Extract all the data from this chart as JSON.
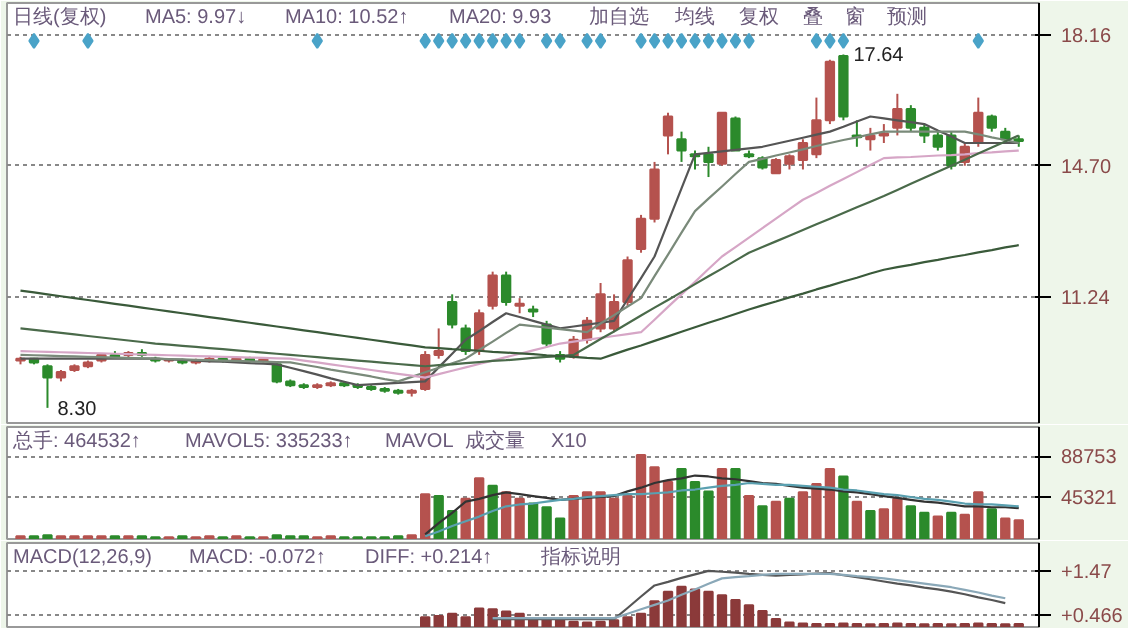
{
  "chart_data": [
    {
      "type": "candlestick",
      "categories": [
        null,
        null,
        null,
        null,
        null,
        null,
        null,
        null,
        null,
        null,
        null,
        null,
        null,
        null,
        null,
        null,
        null,
        null,
        null,
        null,
        null,
        null,
        null,
        null,
        null,
        null,
        null,
        null,
        null,
        null,
        null,
        null,
        null,
        null,
        null,
        null,
        null,
        null,
        null,
        null,
        null,
        null,
        null,
        null,
        null,
        null,
        null,
        null,
        null,
        null,
        null,
        null,
        null,
        null,
        null,
        null,
        null,
        null,
        null,
        null,
        null,
        null,
        null,
        null,
        null,
        null,
        null,
        null,
        null,
        null,
        null,
        null,
        null,
        null,
        null
      ],
      "ohlc": [
        [
          9.55,
          9.65,
          9.45,
          9.6
        ],
        [
          9.6,
          9.62,
          9.45,
          9.5
        ],
        [
          9.4,
          9.45,
          8.3,
          9.1
        ],
        [
          9.1,
          9.3,
          9.0,
          9.25
        ],
        [
          9.3,
          9.45,
          9.25,
          9.4
        ],
        [
          9.4,
          9.55,
          9.35,
          9.5
        ],
        [
          9.55,
          9.75,
          9.5,
          9.7
        ],
        [
          9.7,
          9.8,
          9.6,
          9.65
        ],
        [
          9.7,
          9.8,
          9.6,
          9.75
        ],
        [
          9.75,
          9.85,
          9.65,
          9.7
        ],
        [
          9.6,
          9.65,
          9.5,
          9.55
        ],
        [
          9.55,
          9.6,
          9.5,
          9.58
        ],
        [
          9.55,
          9.6,
          9.45,
          9.5
        ],
        [
          9.5,
          9.6,
          9.45,
          9.55
        ],
        [
          9.55,
          9.65,
          9.5,
          9.6
        ],
        [
          9.6,
          9.65,
          9.5,
          9.55
        ],
        [
          9.55,
          9.65,
          9.5,
          9.6
        ],
        [
          9.6,
          9.65,
          9.5,
          9.55
        ],
        [
          9.55,
          9.62,
          9.5,
          9.58
        ],
        [
          9.45,
          9.5,
          8.95,
          9.0
        ],
        [
          9.0,
          9.05,
          8.85,
          8.9
        ],
        [
          8.9,
          8.95,
          8.8,
          8.85
        ],
        [
          8.85,
          8.95,
          8.8,
          8.9
        ],
        [
          8.9,
          9.0,
          8.85,
          8.95
        ],
        [
          8.95,
          9.0,
          8.85,
          8.9
        ],
        [
          8.9,
          8.95,
          8.8,
          8.85
        ],
        [
          8.85,
          8.9,
          8.75,
          8.8
        ],
        [
          8.8,
          8.85,
          8.7,
          8.75
        ],
        [
          8.75,
          8.8,
          8.65,
          8.7
        ],
        [
          8.7,
          8.8,
          8.6,
          8.75
        ],
        [
          8.8,
          9.8,
          8.75,
          9.7
        ],
        [
          9.7,
          10.4,
          9.6,
          9.8
        ],
        [
          11.1,
          11.3,
          10.4,
          10.5
        ],
        [
          10.4,
          10.5,
          9.7,
          9.8
        ],
        [
          9.8,
          10.9,
          9.7,
          10.8
        ],
        [
          11.0,
          11.9,
          10.9,
          11.8
        ],
        [
          11.8,
          11.9,
          11.0,
          11.1
        ],
        [
          11.0,
          11.2,
          10.8,
          11.05
        ],
        [
          10.9,
          11.0,
          10.7,
          10.85
        ],
        [
          10.5,
          10.6,
          9.9,
          10.0
        ],
        [
          9.7,
          9.8,
          9.5,
          9.6
        ],
        [
          9.65,
          10.2,
          9.6,
          10.1
        ],
        [
          10.1,
          10.7,
          10.0,
          10.6
        ],
        [
          10.4,
          11.6,
          10.3,
          11.3
        ],
        [
          10.4,
          11.3,
          10.3,
          11.1
        ],
        [
          11.1,
          12.3,
          11.0,
          12.2
        ],
        [
          12.5,
          13.4,
          12.4,
          13.3
        ],
        [
          13.3,
          14.8,
          13.2,
          14.6
        ],
        [
          15.5,
          16.1,
          15.0,
          16.0
        ],
        [
          15.4,
          15.6,
          14.8,
          15.1
        ],
        [
          15.0,
          15.1,
          14.6,
          14.95
        ],
        [
          15.0,
          15.2,
          14.4,
          14.8
        ],
        [
          14.75,
          16.1,
          14.7,
          16.1
        ],
        [
          15.95,
          16.0,
          15.1,
          15.1
        ],
        [
          15.0,
          15.1,
          14.9,
          14.95
        ],
        [
          14.9,
          14.95,
          14.6,
          14.65
        ],
        [
          14.5,
          14.9,
          14.5,
          14.85
        ],
        [
          14.75,
          15.0,
          14.6,
          14.95
        ],
        [
          14.85,
          15.4,
          14.6,
          15.3
        ],
        [
          15.0,
          16.5,
          14.9,
          15.9
        ],
        [
          15.9,
          17.5,
          15.8,
          17.45
        ],
        [
          17.6,
          17.64,
          15.9,
          16.0
        ],
        [
          15.5,
          15.9,
          15.2,
          15.45
        ],
        [
          15.4,
          15.7,
          15.1,
          15.5
        ],
        [
          15.5,
          15.8,
          15.3,
          15.55
        ],
        [
          15.7,
          16.6,
          15.5,
          16.2
        ],
        [
          16.2,
          16.3,
          15.6,
          15.7
        ],
        [
          15.7,
          15.8,
          15.3,
          15.5
        ],
        [
          15.5,
          15.6,
          15.1,
          15.2
        ],
        [
          15.5,
          15.6,
          14.6,
          14.7
        ],
        [
          14.8,
          15.3,
          14.7,
          15.2
        ],
        [
          15.3,
          16.5,
          15.2,
          16.1
        ],
        [
          16.0,
          16.05,
          15.6,
          15.7
        ],
        [
          15.6,
          15.7,
          15.3,
          15.4
        ],
        [
          15.4,
          15.5,
          15.2,
          15.35
        ]
      ],
      "colors": [
        "#b5524e",
        "#2b8a2b",
        "#2b8a2b",
        "#b5524e",
        "#b5524e",
        "#b5524e",
        "#b5524e",
        "#2b8a2b",
        "#b5524e",
        "#2b8a2b",
        "#2b8a2b",
        "#b5524e",
        "#2b8a2b",
        "#b5524e",
        "#b5524e",
        "#2b8a2b",
        "#b5524e",
        "#2b8a2b",
        "#b5524e",
        "#2b8a2b",
        "#2b8a2b",
        "#2b8a2b",
        "#b5524e",
        "#b5524e",
        "#2b8a2b",
        "#2b8a2b",
        "#2b8a2b",
        "#2b8a2b",
        "#2b8a2b",
        "#b5524e",
        "#b5524e",
        "#b5524e",
        "#2b8a2b",
        "#2b8a2b",
        "#b5524e",
        "#b5524e",
        "#2b8a2b",
        "#b5524e",
        "#2b8a2b",
        "#2b8a2b",
        "#2b8a2b",
        "#b5524e",
        "#b5524e",
        "#b5524e",
        "#b5524e",
        "#b5524e",
        "#b5524e",
        "#b5524e",
        "#b5524e",
        "#2b8a2b",
        "#2b8a2b",
        "#2b8a2b",
        "#b5524e",
        "#2b8a2b",
        "#2b8a2b",
        "#2b8a2b",
        "#b5524e",
        "#b5524e",
        "#b5524e",
        "#b5524e",
        "#b5524e",
        "#2b8a2b",
        "#2b8a2b",
        "#b5524e",
        "#b5524e",
        "#b5524e",
        "#2b8a2b",
        "#2b8a2b",
        "#2b8a2b",
        "#2b8a2b",
        "#b5524e",
        "#b5524e",
        "#2b8a2b",
        "#2b8a2b",
        "#2b8a2b"
      ],
      "series": [
        {
          "type": "line",
          "color": "#555555",
          "values": [
            9.6,
            9.6,
            9.6,
            9.6,
            9.6,
            9.6,
            9.6,
            9.6,
            9.6,
            9.6,
            9.6,
            9.58,
            9.57,
            9.55,
            9.53,
            9.52,
            9.5,
            9.48,
            9.47,
            9.45,
            9.36,
            9.27,
            9.18,
            9.08,
            8.99,
            8.9,
            8.92,
            8.94,
            8.96,
            8.98,
            9.0,
            9.37,
            9.73,
            10.1,
            10.33,
            10.57,
            10.8,
            10.7,
            10.6,
            10.5,
            10.4,
            10.45,
            10.5,
            10.55,
            10.6,
            11.17,
            11.73,
            12.3,
            13.2,
            14.1,
            15.0,
            15.04,
            15.08,
            15.12,
            15.16,
            15.2,
            15.28,
            15.36,
            15.44,
            15.52,
            15.6,
            15.73,
            15.87,
            16.0,
            15.95,
            15.9,
            15.85,
            15.8,
            15.63,
            15.47,
            15.3,
            15.3,
            15.3,
            15.3,
            15.3
          ]
        },
        {
          "type": "line",
          "color": "#7a8a7a",
          "values": [
            9.7,
            9.69,
            9.68,
            9.67,
            9.66,
            9.65,
            9.64,
            9.63,
            9.62,
            9.61,
            9.6,
            9.59,
            9.58,
            9.57,
            9.56,
            9.55,
            9.54,
            9.53,
            9.52,
            9.51,
            9.5,
            9.44,
            9.38,
            9.31,
            9.25,
            9.19,
            9.13,
            9.06,
            9.0,
            9.12,
            9.24,
            9.36,
            9.48,
            9.6,
            9.83,
            10.05,
            10.28,
            10.5,
            10.46,
            10.42,
            10.38,
            10.34,
            10.3,
            10.53,
            10.75,
            10.98,
            11.2,
            11.78,
            12.35,
            12.93,
            13.5,
            13.83,
            14.15,
            14.48,
            14.8,
            14.88,
            14.97,
            15.05,
            15.13,
            15.22,
            15.3,
            15.38,
            15.45,
            15.53,
            15.6,
            15.6,
            15.6,
            15.6,
            15.6,
            15.6,
            15.6,
            15.53,
            15.45,
            15.38,
            15.3
          ]
        },
        {
          "type": "line",
          "color": "#d6a6c6",
          "values": [
            9.8,
            9.79,
            9.78,
            9.77,
            9.76,
            9.75,
            9.74,
            9.73,
            9.72,
            9.71,
            9.7,
            9.69,
            9.68,
            9.67,
            9.66,
            9.65,
            9.64,
            9.63,
            9.62,
            9.61,
            9.6,
            9.55,
            9.5,
            9.45,
            9.4,
            9.35,
            9.3,
            9.25,
            9.2,
            9.15,
            9.1,
            9.19,
            9.28,
            9.37,
            9.46,
            9.55,
            9.64,
            9.73,
            9.82,
            9.91,
            10.0,
            10.05,
            10.1,
            10.15,
            10.2,
            10.25,
            10.3,
            10.63,
            10.97,
            11.3,
            11.63,
            11.97,
            12.3,
            12.55,
            12.8,
            13.05,
            13.3,
            13.55,
            13.8,
            13.98,
            14.17,
            14.35,
            14.53,
            14.72,
            14.9,
            14.92,
            14.93,
            14.95,
            14.97,
            14.98,
            15.0,
            15.03,
            15.05,
            15.08,
            15.1
          ]
        },
        {
          "type": "line",
          "color": "#4a6a4a",
          "values": [
            10.4,
            10.36,
            10.32,
            10.28,
            10.24,
            10.2,
            10.16,
            10.12,
            10.08,
            10.04,
            10.0,
            9.97,
            9.94,
            9.91,
            9.88,
            9.85,
            9.82,
            9.79,
            9.76,
            9.73,
            9.7,
            9.67,
            9.64,
            9.61,
            9.58,
            9.55,
            9.52,
            9.49,
            9.46,
            9.43,
            9.4,
            9.43,
            9.45,
            9.48,
            9.51,
            9.54,
            9.56,
            9.59,
            9.62,
            9.65,
            9.67,
            9.7,
            9.91,
            10.12,
            10.32,
            10.53,
            10.74,
            10.95,
            11.15,
            11.36,
            11.57,
            11.78,
            11.98,
            12.19,
            12.4,
            12.55,
            12.7,
            12.85,
            13.0,
            13.15,
            13.3,
            13.45,
            13.6,
            13.75,
            13.9,
            14.06,
            14.22,
            14.38,
            14.54,
            14.7,
            14.86,
            15.02,
            15.18,
            15.34,
            15.5
          ]
        },
        {
          "type": "line",
          "color": "#3a5a3a",
          "values": [
            11.4,
            11.35,
            11.3,
            11.25,
            11.2,
            11.15,
            11.1,
            11.05,
            11.0,
            10.95,
            10.9,
            10.85,
            10.8,
            10.75,
            10.7,
            10.65,
            10.6,
            10.55,
            10.5,
            10.45,
            10.4,
            10.35,
            10.3,
            10.25,
            10.2,
            10.15,
            10.1,
            10.05,
            10.0,
            9.95,
            9.9,
            9.88,
            9.85,
            9.83,
            9.81,
            9.78,
            9.76,
            9.74,
            9.72,
            9.69,
            9.67,
            9.65,
            9.62,
            9.6,
            9.72,
            9.84,
            9.95,
            10.07,
            10.19,
            10.31,
            10.43,
            10.55,
            10.66,
            10.78,
            10.9,
            11.01,
            11.11,
            11.22,
            11.32,
            11.43,
            11.53,
            11.64,
            11.74,
            11.85,
            11.95,
            12.02,
            12.08,
            12.15,
            12.21,
            12.28,
            12.34,
            12.41,
            12.47,
            12.54,
            12.6
          ]
        },
        {
          "type": "scatter",
          "marker": "diamond",
          "color": "#4aa3c8",
          "values": [
            null,
            18.0,
            null,
            null,
            null,
            18.0,
            null,
            null,
            null,
            null,
            null,
            null,
            null,
            null,
            null,
            null,
            null,
            null,
            null,
            null,
            null,
            null,
            18.0,
            null,
            null,
            null,
            null,
            null,
            null,
            null,
            18.0,
            18.0,
            18.0,
            18.0,
            18.0,
            18.0,
            18.0,
            18.0,
            null,
            18.0,
            18.0,
            null,
            18.0,
            18.0,
            null,
            null,
            18.0,
            18.0,
            18.0,
            18.0,
            18.0,
            18.0,
            18.0,
            18.0,
            18.0,
            null,
            null,
            null,
            null,
            18.0,
            18.0,
            18.0,
            null,
            null,
            null,
            null,
            null,
            null,
            null,
            null,
            null,
            18.0,
            null,
            null,
            null
          ]
        }
      ],
      "ylim": [
        7.9,
        19.0
      ],
      "yticks": [
        18.16,
        {
          "value": 14.7,
          "label": "14.70"
        },
        11.24
      ],
      "tick_labels": "y",
      "grid": "y",
      "annotations": [
        "日线(复权)",
        "MA5: 9.97↓",
        "MA10: 10.52↑",
        "MA20: 9.93",
        "加自选",
        "均线",
        "复权",
        "叠",
        "窗",
        "预测",
        "17.64",
        "8.30"
      ]
    },
    {
      "type": "bar",
      "categories": [
        null,
        null,
        null,
        null,
        null,
        null,
        null,
        null,
        null,
        null,
        null,
        null,
        null,
        null,
        null,
        null,
        null,
        null,
        null,
        null,
        null,
        null,
        null,
        null,
        null,
        null,
        null,
        null,
        null,
        null,
        null,
        null,
        null,
        null,
        null,
        null,
        null,
        null,
        null,
        null,
        null,
        null,
        null,
        null,
        null,
        null,
        null,
        null,
        null,
        null,
        null,
        null,
        null,
        null,
        null,
        null,
        null,
        null,
        null,
        null,
        null,
        null,
        null,
        null,
        null,
        null,
        null,
        null,
        null,
        null,
        null,
        null,
        null,
        null,
        null
      ],
      "series": [
        {
          "type": "bar",
          "values": [
            3000,
            3000,
            4000,
            3000,
            3000,
            3000,
            3000,
            3000,
            3000,
            3000,
            2000,
            2000,
            3000,
            2000,
            3000,
            2000,
            3000,
            2000,
            2000,
            4000,
            3000,
            3000,
            2000,
            3000,
            2000,
            2000,
            2000,
            2000,
            3000,
            4000,
            48000,
            46000,
            30000,
            43000,
            65000,
            57000,
            50000,
            43000,
            38000,
            34000,
            22000,
            46000,
            50000,
            50000,
            43000,
            46000,
            90000,
            77000,
            61000,
            75000,
            61000,
            51000,
            75000,
            75000,
            46000,
            35000,
            40000,
            43000,
            50000,
            59000,
            75000,
            67000,
            40000,
            30000,
            32000,
            43000,
            35000,
            28000,
            24000,
            28000,
            26000,
            50000,
            32000,
            22000,
            20000
          ],
          "colors": [
            "#b5524e",
            "#2b8a2b",
            "#2b8a2b",
            "#b5524e",
            "#b5524e",
            "#b5524e",
            "#b5524e",
            "#2b8a2b",
            "#b5524e",
            "#2b8a2b",
            "#2b8a2b",
            "#b5524e",
            "#2b8a2b",
            "#b5524e",
            "#b5524e",
            "#2b8a2b",
            "#b5524e",
            "#2b8a2b",
            "#b5524e",
            "#2b8a2b",
            "#2b8a2b",
            "#2b8a2b",
            "#b5524e",
            "#b5524e",
            "#2b8a2b",
            "#2b8a2b",
            "#2b8a2b",
            "#2b8a2b",
            "#2b8a2b",
            "#b5524e",
            "#b5524e",
            "#2b8a2b",
            "#2b8a2b",
            "#b5524e",
            "#b5524e",
            "#2b8a2b",
            "#b5524e",
            "#b5524e",
            "#2b8a2b",
            "#2b8a2b",
            "#2b8a2b",
            "#b5524e",
            "#b5524e",
            "#b5524e",
            "#b5524e",
            "#b5524e",
            "#b5524e",
            "#b5524e",
            "#b5524e",
            "#2b8a2b",
            "#2b8a2b",
            "#2b8a2b",
            "#b5524e",
            "#2b8a2b",
            "#b5524e",
            "#2b8a2b",
            "#b5524e",
            "#2b8a2b",
            "#b5524e",
            "#b5524e",
            "#b5524e",
            "#2b8a2b",
            "#b5524e",
            "#2b8a2b",
            "#b5524e",
            "#b5524e",
            "#2b8a2b",
            "#2b8a2b",
            "#b5524e",
            "#2b8a2b",
            "#b5524e",
            "#b5524e",
            "#2b8a2b",
            "#b5524e",
            "#b5524e"
          ]
        },
        {
          "type": "line",
          "color": "#333333",
          "values": [
            null,
            null,
            null,
            null,
            null,
            null,
            null,
            null,
            null,
            null,
            null,
            null,
            null,
            null,
            null,
            null,
            null,
            null,
            null,
            null,
            null,
            null,
            null,
            null,
            null,
            null,
            null,
            null,
            null,
            null,
            5000,
            17000,
            28000,
            40000,
            43000,
            47000,
            50000,
            48000,
            46000,
            44000,
            42000,
            43000,
            44000,
            45000,
            46000,
            51000,
            55000,
            60000,
            63000,
            65000,
            68000,
            67000,
            65000,
            64000,
            62000,
            60000,
            59000,
            57000,
            55000,
            54000,
            53000,
            51000,
            50000,
            48000,
            46000,
            44000,
            42000,
            40000,
            39000,
            37000,
            35000,
            35000,
            34000,
            34000,
            33000
          ]
        },
        {
          "type": "line",
          "color": "#5aa0b0",
          "values": [
            null,
            null,
            null,
            null,
            null,
            null,
            null,
            null,
            null,
            null,
            null,
            null,
            null,
            null,
            null,
            null,
            null,
            null,
            null,
            null,
            null,
            null,
            null,
            null,
            null,
            null,
            null,
            null,
            null,
            null,
            3000,
            8000,
            14000,
            19000,
            24000,
            30000,
            35000,
            37000,
            38000,
            40000,
            42000,
            43000,
            45000,
            46000,
            47000,
            48000,
            48000,
            49000,
            50000,
            52000,
            53000,
            55000,
            57000,
            58000,
            60000,
            59000,
            58000,
            58000,
            57000,
            56000,
            55000,
            53000,
            52000,
            50000,
            48000,
            47000,
            45000,
            43000,
            42000,
            40000,
            38000,
            37000,
            37000,
            36000,
            35000
          ]
        }
      ],
      "ylim": [
        0,
        120000
      ],
      "yticks": [
        88753,
        45321
      ],
      "tick_labels": "y",
      "grid": "y",
      "annotations": [
        "总手: 464532↑",
        "MAVOL5: 335233↑",
        "MAVOL",
        "成交量",
        "X10"
      ]
    },
    {
      "type": "bar",
      "categories": [
        null,
        null,
        null,
        null,
        null,
        null,
        null,
        null,
        null,
        null,
        null,
        null,
        null,
        null,
        null,
        null,
        null,
        null,
        null,
        null,
        null,
        null,
        null,
        null,
        null,
        null,
        null,
        null,
        null,
        null,
        null,
        null,
        null,
        null,
        null,
        null,
        null,
        null,
        null,
        null,
        null,
        null,
        null,
        null,
        null,
        null,
        null,
        null,
        null,
        null,
        null,
        null,
        null,
        null,
        null,
        null,
        null,
        null,
        null,
        null,
        null,
        null,
        null,
        null,
        null,
        null,
        null,
        null,
        null,
        null,
        null,
        null,
        null,
        null,
        null
      ],
      "series": [
        {
          "type": "bar",
          "color": "#8b3a3a",
          "values": [
            null,
            null,
            null,
            null,
            null,
            null,
            null,
            null,
            null,
            null,
            null,
            null,
            null,
            null,
            null,
            null,
            null,
            null,
            null,
            null,
            null,
            null,
            null,
            null,
            null,
            null,
            null,
            null,
            null,
            null,
            0.42,
            0.45,
            0.5,
            0.42,
            0.62,
            0.6,
            0.55,
            0.5,
            0.4,
            0.38,
            0.35,
            0.32,
            0.3,
            0.32,
            0.35,
            0.42,
            0.5,
            0.78,
            1.0,
            1.11,
            1.05,
            1.0,
            0.92,
            0.81,
            0.69,
            0.56,
            0.38,
            0.3,
            0.28,
            0.27,
            0.27,
            0.28,
            0.27,
            0.26,
            0.27,
            0.28,
            0.27,
            0.26,
            0.27,
            0.26,
            0.27,
            0.28,
            0.27,
            0.26,
            0.27
          ]
        },
        {
          "type": "line",
          "color": "#555555",
          "values": [
            null,
            null,
            null,
            null,
            null,
            null,
            null,
            null,
            null,
            null,
            null,
            null,
            null,
            null,
            null,
            null,
            null,
            null,
            null,
            null,
            null,
            null,
            null,
            null,
            null,
            null,
            null,
            null,
            null,
            null,
            null,
            null,
            null,
            null,
            null,
            0.38,
            0.38,
            0.38,
            0.38,
            0.38,
            0.38,
            0.38,
            0.38,
            0.38,
            0.38,
            0.63,
            0.89,
            1.14,
            1.22,
            1.31,
            1.39,
            1.47,
            1.45,
            1.43,
            1.4,
            1.38,
            1.36,
            1.38,
            1.39,
            1.41,
            1.42,
            1.37,
            1.33,
            1.28,
            1.23,
            1.18,
            1.14,
            1.09,
            1.05,
            1.0,
            0.94,
            0.87,
            0.81,
            0.74,
            null
          ]
        },
        {
          "type": "line",
          "color": "#8aa8b8",
          "values": [
            null,
            null,
            null,
            null,
            null,
            null,
            null,
            null,
            null,
            null,
            null,
            null,
            null,
            null,
            null,
            null,
            null,
            null,
            null,
            null,
            null,
            null,
            null,
            null,
            null,
            null,
            null,
            null,
            null,
            null,
            null,
            null,
            null,
            null,
            null,
            0.4,
            0.4,
            0.4,
            0.4,
            0.4,
            0.4,
            0.4,
            0.4,
            0.4,
            0.4,
            0.5,
            0.6,
            0.7,
            0.8,
            0.93,
            1.05,
            1.18,
            1.3,
            1.33,
            1.35,
            1.38,
            1.4,
            1.4,
            1.4,
            1.4,
            1.4,
            1.38,
            1.35,
            1.33,
            1.3,
            1.26,
            1.22,
            1.18,
            1.14,
            1.1,
            1.04,
            0.98,
            0.91,
            0.85,
            null
          ]
        }
      ],
      "ylim": [
        0.2,
        2.1
      ],
      "yticks": [
        {
          "value": 1.47,
          "label": "+1.47"
        },
        {
          "value": 0.466,
          "label": "+0.466"
        }
      ],
      "tick_labels": "y",
      "grid": "y",
      "annotations": [
        "MACD(12,26,9)",
        "MACD: -0.072↑",
        "DIFF: +0.214↑",
        "指标说明"
      ]
    }
  ]
}
